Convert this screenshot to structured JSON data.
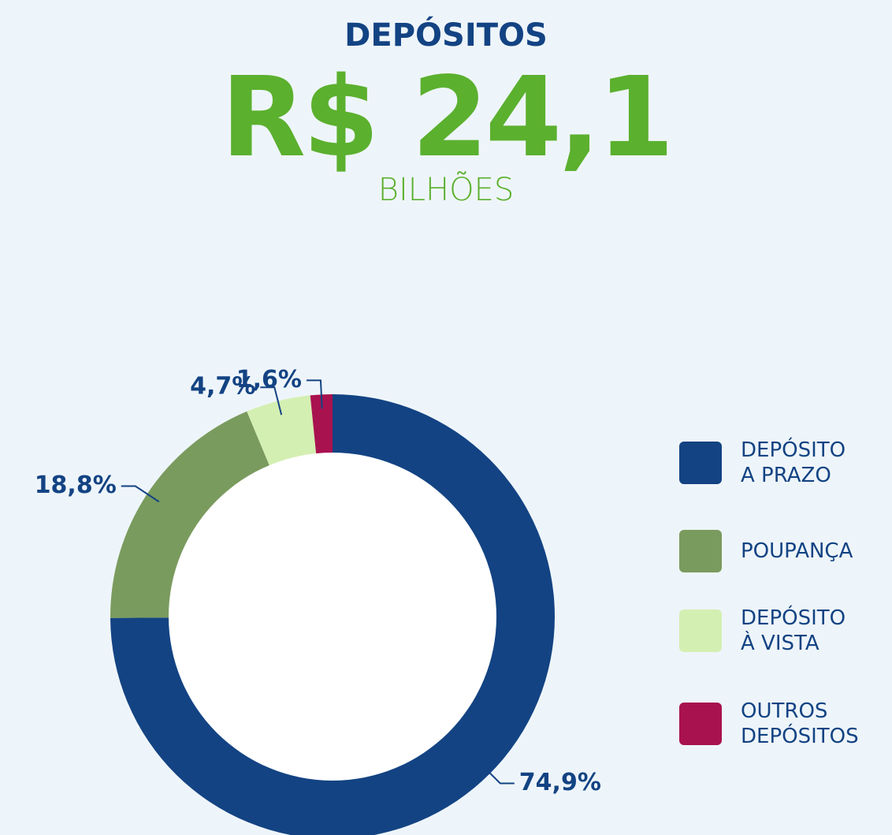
{
  "chart_data": {
    "type": "pie",
    "donut": true,
    "title": "DEPÓSITOS",
    "headline": "R$ 24,1",
    "subtitle": "BILHÕES",
    "categories": [
      "DEPÓSITO\nA PRAZO",
      "POUPANÇA",
      "DEPÓSITO\nÀ VISTA",
      "OUTROS\nDEPÓSITOS"
    ],
    "values": [
      74.9,
      18.8,
      4.7,
      1.6
    ],
    "value_labels": [
      "74,9%",
      "18,8%",
      "4,7%",
      "1,6%"
    ],
    "colors": [
      "#134383",
      "#7a9b5e",
      "#d4efb2",
      "#a8124f"
    ],
    "legend": "right"
  }
}
